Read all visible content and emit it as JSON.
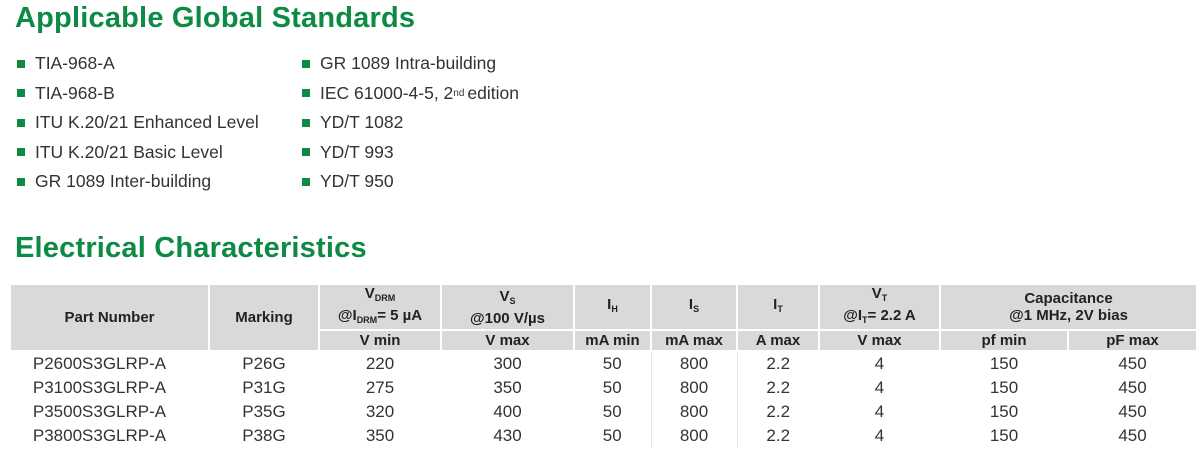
{
  "standards": {
    "title": "Applicable Global Standards",
    "accent_color": "#0d8a44",
    "column1": [
      "TIA-968-A",
      "TIA-968-B",
      "ITU K.20/21 Enhanced Level",
      "ITU K.20/21 Basic Level",
      "GR 1089 Inter-building"
    ],
    "column2": [
      {
        "text": "GR 1089 Intra-building"
      },
      {
        "text": "IEC 61000-4-5, 2",
        "sup": "nd",
        "after": "edition"
      },
      {
        "text": "YD/T 1082"
      },
      {
        "text": "YD/T 993"
      },
      {
        "text": "YD/T 950"
      }
    ]
  },
  "electrical": {
    "title": "Electrical Characteristics",
    "header": {
      "part_number": "Part Number",
      "marking": "Marking",
      "vdrm": {
        "main": "V",
        "sub": "DRM",
        "cond_pre": "@I",
        "cond_sub": "DRM",
        "cond_post": "= 5 µA",
        "unit": "V min"
      },
      "vs": {
        "main": "V",
        "sub": "S",
        "cond": "@100 V/µs",
        "unit": "V max"
      },
      "ih": {
        "main": "I",
        "sub": "H",
        "unit": "mA min"
      },
      "is": {
        "main": "I",
        "sub": "S",
        "unit": "mA max"
      },
      "it": {
        "main": "I",
        "sub": "T",
        "unit": "A max"
      },
      "vt": {
        "main": "V",
        "sub": "T",
        "cond_pre": "@I",
        "cond_sub": "T",
        "cond_post": "= 2.2  A",
        "unit": "V max"
      },
      "capacitance": {
        "label": "Capacitance",
        "cond": "@1 MHz, 2V bias",
        "unit_min": "pf min",
        "unit_max": "pF max"
      }
    },
    "rows": [
      [
        "P2600S3GLRP-A",
        "P26G",
        "220",
        "300",
        "50",
        "800",
        "2.2",
        "4",
        "150",
        "450"
      ],
      [
        "P3100S3GLRP-A",
        "P31G",
        "275",
        "350",
        "50",
        "800",
        "2.2",
        "4",
        "150",
        "450"
      ],
      [
        "P3500S3GLRP-A",
        "P35G",
        "320",
        "400",
        "50",
        "800",
        "2.2",
        "4",
        "150",
        "450"
      ],
      [
        "P3800S3GLRP-A",
        "P38G",
        "350",
        "430",
        "50",
        "800",
        "2.2",
        "4",
        "150",
        "450"
      ]
    ]
  }
}
